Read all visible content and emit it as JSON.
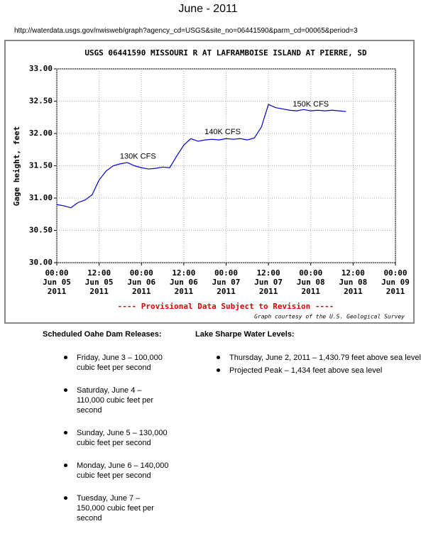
{
  "header": {
    "title": "June - 2011",
    "url": "http://waterdata.usgs.gov/nwisweb/graph?agency_cd=USGS&site_no=06441590&parm_cd=00065&period=3"
  },
  "chart_data": {
    "type": "line",
    "title": "USGS 06441590 MISSOURI R AT LAFRAMBOISE ISLAND AT PIERRE, SD",
    "ylabel": "Gage height, feet",
    "x": [
      "2011-06-05 00:00",
      "2011-06-05 02:00",
      "2011-06-05 04:00",
      "2011-06-05 06:00",
      "2011-06-05 08:00",
      "2011-06-05 10:00",
      "2011-06-05 12:00",
      "2011-06-05 14:00",
      "2011-06-05 16:00",
      "2011-06-05 18:00",
      "2011-06-05 20:00",
      "2011-06-05 22:00",
      "2011-06-06 00:00",
      "2011-06-06 02:00",
      "2011-06-06 04:00",
      "2011-06-06 06:00",
      "2011-06-06 08:00",
      "2011-06-06 10:00",
      "2011-06-06 12:00",
      "2011-06-06 14:00",
      "2011-06-06 16:00",
      "2011-06-06 18:00",
      "2011-06-06 20:00",
      "2011-06-06 22:00",
      "2011-06-07 00:00",
      "2011-06-07 02:00",
      "2011-06-07 04:00",
      "2011-06-07 06:00",
      "2011-06-07 08:00",
      "2011-06-07 10:00",
      "2011-06-07 12:00",
      "2011-06-07 14:00",
      "2011-06-07 16:00",
      "2011-06-07 18:00",
      "2011-06-07 20:00",
      "2011-06-07 22:00",
      "2011-06-08 00:00",
      "2011-06-08 02:00",
      "2011-06-08 04:00",
      "2011-06-08 06:00",
      "2011-06-08 08:00",
      "2011-06-08 10:00"
    ],
    "series": [
      {
        "color": "#0000cc",
        "values": [
          30.9,
          30.88,
          30.85,
          30.93,
          30.97,
          31.05,
          31.28,
          31.42,
          31.5,
          31.53,
          31.55,
          31.5,
          31.47,
          31.45,
          31.46,
          31.48,
          31.47,
          31.65,
          31.82,
          31.92,
          31.88,
          31.9,
          31.91,
          31.9,
          31.92,
          31.91,
          31.92,
          31.9,
          31.93,
          32.1,
          32.45,
          32.4,
          32.38,
          32.36,
          32.35,
          32.37,
          32.35,
          32.36,
          32.35,
          32.36,
          32.35,
          32.34
        ]
      }
    ],
    "xlim": [
      "2011-06-05 00:00",
      "2011-06-09 00:00"
    ],
    "xticks": [
      {
        "value": "2011-06-05 00:00",
        "label": "00:00\nJun 05\n2011"
      },
      {
        "value": "2011-06-05 12:00",
        "label": "12:00\nJun 05\n2011"
      },
      {
        "value": "2011-06-06 00:00",
        "label": "00:00\nJun 06\n2011"
      },
      {
        "value": "2011-06-06 12:00",
        "label": "12:00\nJun 06\n2011"
      },
      {
        "value": "2011-06-07 00:00",
        "label": "00:00\nJun 07\n2011"
      },
      {
        "value": "2011-06-07 12:00",
        "label": "12:00\nJun 07\n2011"
      },
      {
        "value": "2011-06-08 00:00",
        "label": "00:00\nJun 08\n2011"
      },
      {
        "value": "2011-06-08 12:00",
        "label": "12:00\nJun 08\n2011"
      },
      {
        "value": "2011-06-09 00:00",
        "label": "00:00\nJun 09\n2011"
      }
    ],
    "ylim": [
      30,
      33
    ],
    "yticks": [
      {
        "value": 30,
        "label": "30.00"
      },
      {
        "value": 30.5,
        "label": "30.50"
      },
      {
        "value": 31,
        "label": "31.00"
      },
      {
        "value": 31.5,
        "label": "31.50"
      },
      {
        "value": 32,
        "label": "32.00"
      },
      {
        "value": 32.5,
        "label": "32.50"
      },
      {
        "value": 33,
        "label": "33.00"
      }
    ],
    "grid": true,
    "annotations": [
      {
        "text": "130K CFS",
        "x": "2011-06-05 23:00",
        "y": 31.64
      },
      {
        "text": "140K CFS",
        "x": "2011-06-06 23:00",
        "y": 32.02
      },
      {
        "text": "150K CFS",
        "x": "2011-06-08 00:00",
        "y": 32.45
      }
    ],
    "notice": "---- Provisional Data Subject to Revision ----",
    "credit": "Graph courtesy of the U.S. Geological Survey"
  },
  "releases": {
    "heading": "Scheduled Oahe Dam Releases:",
    "items": [
      "Friday, June 3 – 100,000 cubic feet per second",
      "Saturday, June 4 – 110,000 cubic feet per second",
      "Sunday, June 5 – 130,000 cubic feet per second",
      "Monday, June 6 – 140,000 cubic feet per second",
      "Tuesday, June 7 – 150,000 cubic feet per second"
    ]
  },
  "levels": {
    "heading": "Lake Sharpe Water Levels:",
    "items": [
      "Thursday, June 2, 2011 – 1,430.79 feet above sea level",
      "Projected Peak – 1,434 feet above sea level"
    ]
  }
}
